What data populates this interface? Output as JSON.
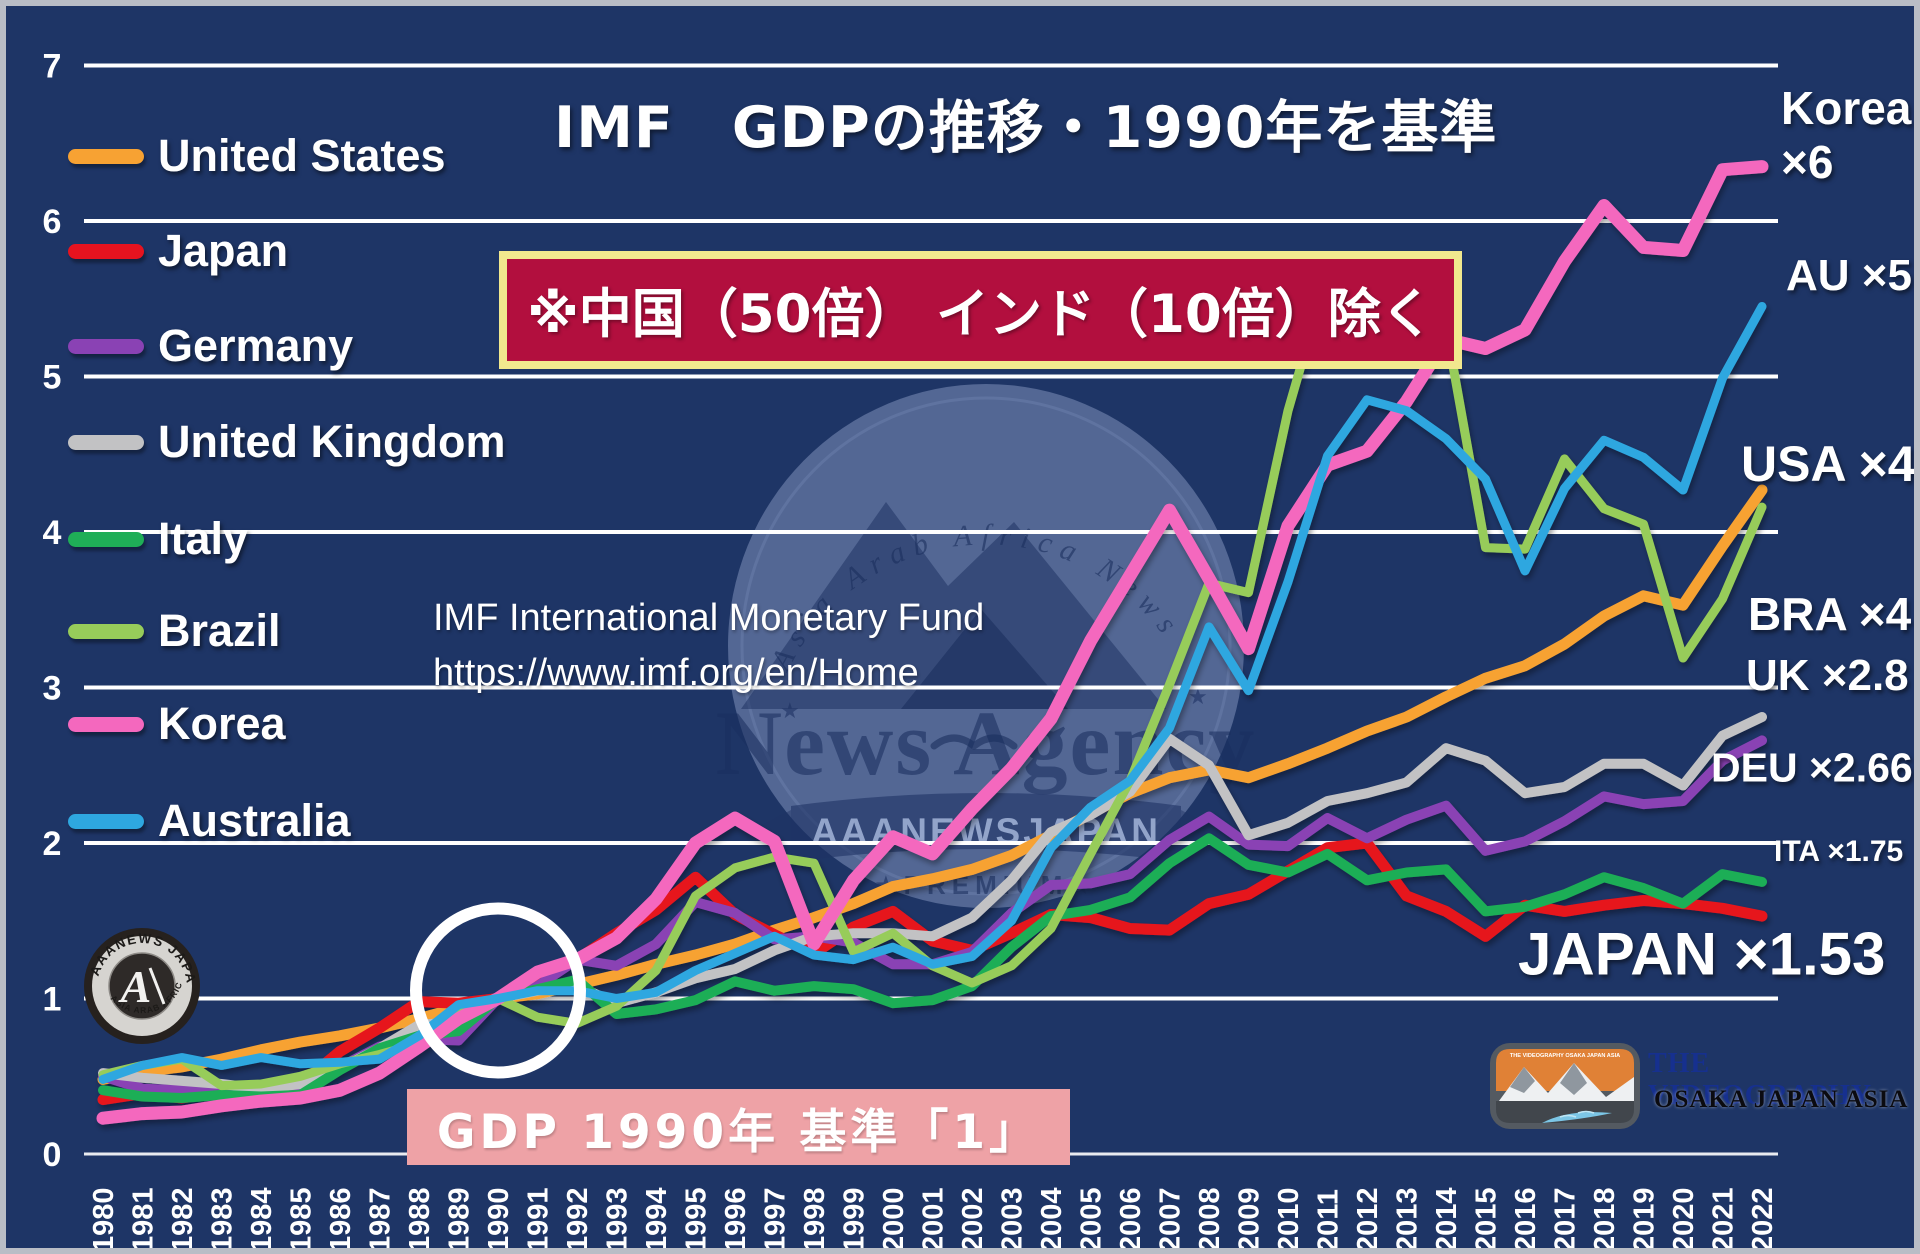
{
  "title": {
    "text": "IMF　GDPの推移・1990年を基準"
  },
  "badge": {
    "text": "※中国（50倍） インド（10倍）除く"
  },
  "source": {
    "line1": "IMF International Monetary Fund",
    "line2": "https://www.imf.org/en/Home"
  },
  "note": {
    "text": "GDP 1990年 基準「1」"
  },
  "colors": {
    "background": "#1e3566",
    "gridline": "#ffffff",
    "badge_red": "#b20f3e",
    "badge_border_yellow": "#f1e88e",
    "note_pink": "#eea2a6",
    "annotation_circle": "#ffffff"
  },
  "watermark": {
    "arc": "Asia Arab Africa News",
    "agency": "News Agency",
    "banner": "AAANEWSJAPAN",
    "premium": "★PREMIUM★"
  },
  "corner_logo": {
    "arc_top": "AAANEWS JAPAN",
    "arc_bottom": "ASIA ARAB AFRICA",
    "monogram": "A"
  },
  "videography": {
    "emblem_top": "THE VIDEOGRAPHY OSAKA JAPAN ASIA",
    "line1": "THE VIDEOGRAPHY",
    "line2": "OSAKA JAPAN ASIA"
  },
  "chart_data": {
    "type": "line",
    "title": "IMF　GDPの推移・1990年を基準",
    "note": "GDP indexed to 1990 = 1; China (x50) and India (x10) excluded",
    "xlabel": "",
    "ylabel": "",
    "ylim": [
      0,
      7
    ],
    "y_ticks": [
      7,
      6,
      5,
      4,
      3,
      2,
      1,
      0
    ],
    "grid": true,
    "legend_position": "left",
    "baseline": {
      "year": 1990,
      "value": 1
    },
    "x": [
      1980,
      1981,
      1982,
      1983,
      1984,
      1985,
      1986,
      1987,
      1988,
      1989,
      1990,
      1991,
      1992,
      1993,
      1994,
      1995,
      1996,
      1997,
      1998,
      1999,
      2000,
      2001,
      2002,
      2003,
      2004,
      2005,
      2006,
      2007,
      2008,
      2009,
      2010,
      2011,
      2012,
      2013,
      2014,
      2015,
      2016,
      2017,
      2018,
      2019,
      2020,
      2021,
      2022
    ],
    "series": [
      {
        "id": "usa",
        "name": "United States",
        "color": "#f7a233",
        "width": 11,
        "values": [
          0.48,
          0.53,
          0.56,
          0.61,
          0.67,
          0.72,
          0.76,
          0.81,
          0.87,
          0.94,
          1.0,
          1.03,
          1.09,
          1.15,
          1.22,
          1.28,
          1.35,
          1.44,
          1.52,
          1.61,
          1.72,
          1.77,
          1.83,
          1.92,
          2.05,
          2.19,
          2.32,
          2.42,
          2.47,
          2.42,
          2.51,
          2.61,
          2.72,
          2.81,
          2.94,
          3.06,
          3.14,
          3.28,
          3.46,
          3.59,
          3.53,
          3.91,
          4.27
        ]
      },
      {
        "id": "japan",
        "name": "Japan",
        "color": "#e6131f",
        "width": 11,
        "values": [
          0.35,
          0.39,
          0.36,
          0.4,
          0.42,
          0.45,
          0.66,
          0.81,
          0.98,
          0.97,
          1.0,
          1.14,
          1.25,
          1.42,
          1.57,
          1.78,
          1.54,
          1.41,
          1.29,
          1.46,
          1.56,
          1.37,
          1.31,
          1.42,
          1.54,
          1.52,
          1.45,
          1.44,
          1.61,
          1.67,
          1.82,
          1.97,
          2.0,
          1.66,
          1.56,
          1.4,
          1.6,
          1.56,
          1.6,
          1.63,
          1.61,
          1.58,
          1.53
        ]
      },
      {
        "id": "germany",
        "name": "Germany",
        "color": "#8a42b4",
        "width": 10,
        "values": [
          0.5,
          0.42,
          0.41,
          0.41,
          0.38,
          0.39,
          0.56,
          0.69,
          0.74,
          0.73,
          1.0,
          1.08,
          1.25,
          1.21,
          1.35,
          1.62,
          1.55,
          1.38,
          1.4,
          1.36,
          1.22,
          1.22,
          1.3,
          1.55,
          1.73,
          1.74,
          1.8,
          2.02,
          2.17,
          1.99,
          1.98,
          2.16,
          2.03,
          2.15,
          2.24,
          1.95,
          2.01,
          2.14,
          2.3,
          2.25,
          2.27,
          2.53,
          2.66
        ]
      },
      {
        "id": "uk",
        "name": "United Kingdom",
        "color": "#c2c2c4",
        "width": 10,
        "values": [
          0.52,
          0.49,
          0.47,
          0.45,
          0.42,
          0.45,
          0.55,
          0.68,
          0.83,
          0.85,
          1.0,
          1.05,
          1.08,
          0.97,
          1.04,
          1.13,
          1.19,
          1.31,
          1.4,
          1.42,
          1.42,
          1.4,
          1.52,
          1.76,
          2.07,
          2.18,
          2.33,
          2.67,
          2.5,
          2.05,
          2.13,
          2.27,
          2.32,
          2.39,
          2.61,
          2.53,
          2.32,
          2.36,
          2.51,
          2.51,
          2.37,
          2.69,
          2.81
        ]
      },
      {
        "id": "italy",
        "name": "Italy",
        "color": "#1fae57",
        "width": 10,
        "values": [
          0.41,
          0.37,
          0.36,
          0.38,
          0.37,
          0.38,
          0.54,
          0.68,
          0.76,
          0.79,
          1.0,
          1.06,
          1.12,
          0.9,
          0.93,
          0.99,
          1.11,
          1.05,
          1.08,
          1.06,
          0.97,
          0.99,
          1.08,
          1.33,
          1.53,
          1.57,
          1.65,
          1.87,
          2.03,
          1.86,
          1.81,
          1.93,
          1.76,
          1.81,
          1.83,
          1.56,
          1.59,
          1.67,
          1.78,
          1.71,
          1.61,
          1.8,
          1.75
        ]
      },
      {
        "id": "brazil",
        "name": "Brazil",
        "color": "#97cc5a",
        "width": 9,
        "values": [
          0.51,
          0.57,
          0.61,
          0.44,
          0.45,
          0.5,
          0.58,
          0.64,
          0.71,
          0.92,
          1.0,
          0.88,
          0.84,
          0.95,
          1.18,
          1.66,
          1.84,
          1.91,
          1.87,
          1.3,
          1.42,
          1.21,
          1.1,
          1.21,
          1.45,
          1.93,
          2.4,
          3.02,
          3.67,
          3.61,
          4.78,
          5.66,
          5.34,
          5.35,
          5.32,
          3.9,
          3.89,
          4.47,
          4.15,
          4.05,
          3.19,
          3.57,
          4.16
        ]
      },
      {
        "id": "korea",
        "name": "Korea",
        "color": "#f468be",
        "width": 13,
        "values": [
          0.23,
          0.26,
          0.27,
          0.31,
          0.34,
          0.36,
          0.41,
          0.52,
          0.69,
          0.87,
          1.0,
          1.17,
          1.25,
          1.39,
          1.64,
          2.0,
          2.16,
          2.01,
          1.35,
          1.76,
          2.04,
          1.93,
          2.22,
          2.48,
          2.8,
          3.3,
          3.72,
          4.14,
          3.7,
          3.25,
          4.04,
          4.43,
          4.52,
          4.84,
          5.24,
          5.18,
          5.3,
          5.74,
          6.1,
          5.83,
          5.81,
          6.33,
          6.35
        ]
      },
      {
        "id": "australia",
        "name": "Australia",
        "color": "#2ea7e0",
        "width": 9,
        "values": [
          0.48,
          0.57,
          0.62,
          0.57,
          0.62,
          0.58,
          0.59,
          0.61,
          0.76,
          0.96,
          1.0,
          1.05,
          1.05,
          1.0,
          1.04,
          1.18,
          1.29,
          1.4,
          1.28,
          1.25,
          1.33,
          1.22,
          1.27,
          1.5,
          1.97,
          2.23,
          2.4,
          2.74,
          3.39,
          2.98,
          3.68,
          4.49,
          4.85,
          4.78,
          4.6,
          4.34,
          3.75,
          4.28,
          4.59,
          4.48,
          4.27,
          4.99,
          5.45
        ]
      }
    ],
    "end_labels": [
      {
        "id": "korea-name",
        "text": "Korea"
      },
      {
        "id": "korea-mult",
        "text": "×6"
      },
      {
        "id": "au",
        "text": "AU ×5"
      },
      {
        "id": "usa",
        "text": "USA ×4"
      },
      {
        "id": "bra",
        "text": "BRA ×4"
      },
      {
        "id": "uk",
        "text": "UK ×2.8"
      },
      {
        "id": "deu",
        "text": "DEU ×2.66"
      },
      {
        "id": "ita",
        "text": "ITA ×1.75"
      },
      {
        "id": "japan",
        "text": "JAPAN ×1.53"
      }
    ]
  }
}
